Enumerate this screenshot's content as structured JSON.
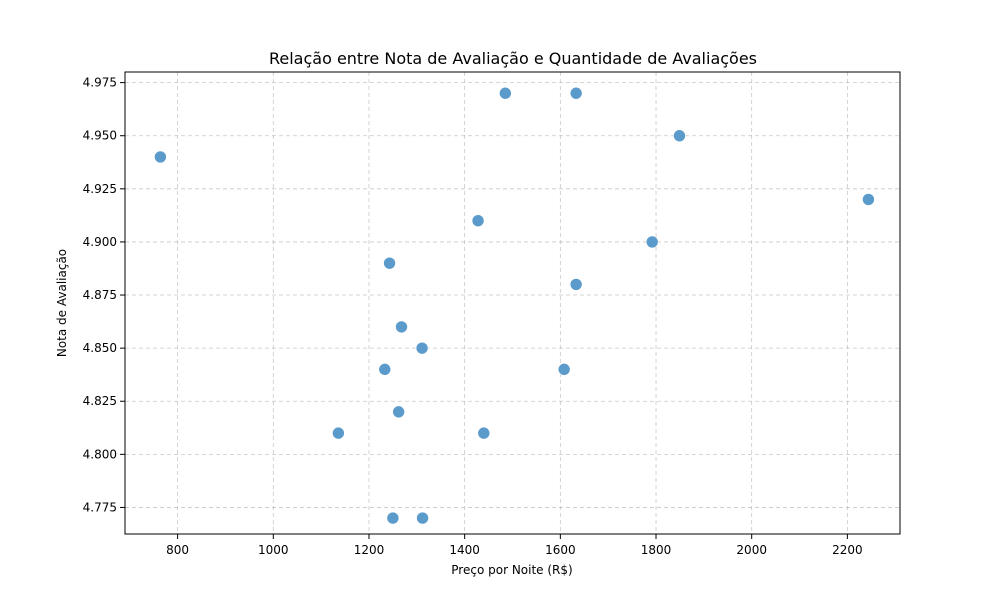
{
  "chart_data": {
    "type": "scatter",
    "title": "Relação entre Nota de Avaliação e Quantidade de Avaliações",
    "xlabel": "Preço por Noite (R$)",
    "ylabel": "Nota de Avaliação",
    "xlim": [
      690,
      2310
    ],
    "ylim": [
      4.7625,
      4.98
    ],
    "xticks": [
      800,
      1000,
      1200,
      1400,
      1600,
      1800,
      2000,
      2200
    ],
    "xtick_labels": [
      "800",
      "1000",
      "1200",
      "1400",
      "1600",
      "1800",
      "2000",
      "2200"
    ],
    "yticks": [
      4.775,
      4.8,
      4.825,
      4.85,
      4.875,
      4.9,
      4.925,
      4.95,
      4.975
    ],
    "ytick_labels": [
      "4.775",
      "4.800",
      "4.825",
      "4.850",
      "4.875",
      "4.900",
      "4.925",
      "4.950",
      "4.975"
    ],
    "grid": true,
    "point_color": "#5b9bcb",
    "points": [
      {
        "x": 764,
        "y": 4.94
      },
      {
        "x": 1485,
        "y": 4.97
      },
      {
        "x": 1633,
        "y": 4.97
      },
      {
        "x": 1849,
        "y": 4.95
      },
      {
        "x": 2244,
        "y": 4.92
      },
      {
        "x": 1428,
        "y": 4.91
      },
      {
        "x": 1792,
        "y": 4.9
      },
      {
        "x": 1243,
        "y": 4.89
      },
      {
        "x": 1633,
        "y": 4.88
      },
      {
        "x": 1268,
        "y": 4.86
      },
      {
        "x": 1311,
        "y": 4.85
      },
      {
        "x": 1233,
        "y": 4.84
      },
      {
        "x": 1608,
        "y": 4.84
      },
      {
        "x": 1262,
        "y": 4.82
      },
      {
        "x": 1136,
        "y": 4.81
      },
      {
        "x": 1440,
        "y": 4.81
      },
      {
        "x": 1250,
        "y": 4.77
      },
      {
        "x": 1312,
        "y": 4.77
      }
    ]
  }
}
